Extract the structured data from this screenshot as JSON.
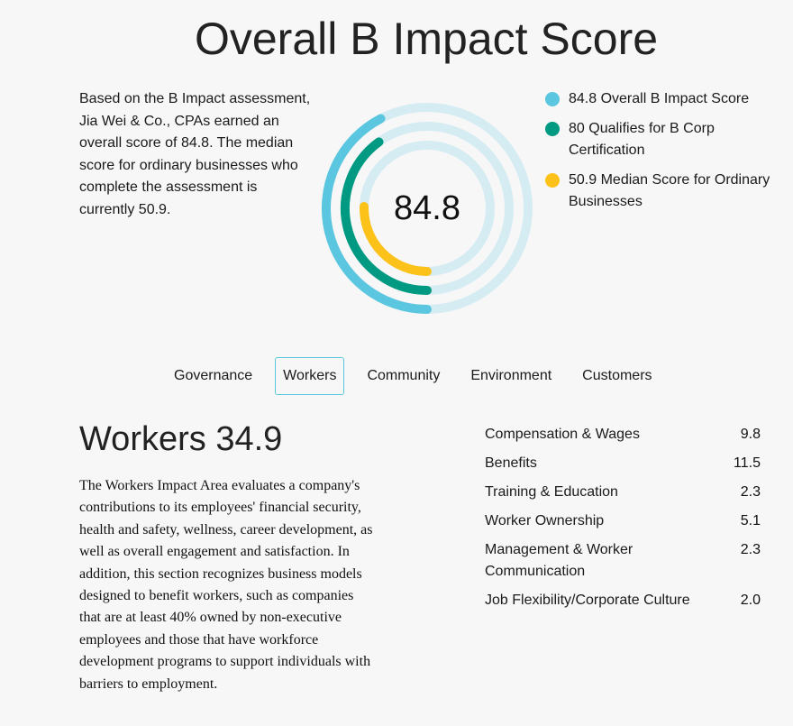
{
  "page": {
    "title": "Overall B Impact Score",
    "intro": "Based on the B Impact assessment, Jia Wei & Co., CPAs earned an overall score of 84.8. The median score for ordinary businesses who complete the assessment is currently 50.9."
  },
  "gauge": {
    "center_value": "84.8",
    "max_score": 200,
    "track_color": "#d6ecf3",
    "rings": [
      {
        "name": "overall",
        "value": 84.8,
        "color": "#5bc6df"
      },
      {
        "name": "qualifies",
        "value": 80,
        "color": "#009a82"
      },
      {
        "name": "median",
        "value": 50.9,
        "color": "#fdc21a"
      }
    ]
  },
  "legend": [
    {
      "label": "84.8 Overall B Impact Score",
      "color": "#5bc6df",
      "icon": "circle-dot-icon"
    },
    {
      "label": "80 Qualifies for B Corp Certification",
      "color": "#009a82",
      "icon": "circle-dot-icon"
    },
    {
      "label": "50.9 Median Score for Ordinary Businesses",
      "color": "#fdc21a",
      "icon": "circle-dot-icon"
    }
  ],
  "tabs": [
    {
      "label": "Governance",
      "active": false
    },
    {
      "label": "Workers",
      "active": true
    },
    {
      "label": "Community",
      "active": false
    },
    {
      "label": "Environment",
      "active": false
    },
    {
      "label": "Customers",
      "active": false
    }
  ],
  "section": {
    "title": "Workers 34.9",
    "description": "The Workers Impact Area evaluates a company's contributions to its employees' financial security, health and safety, wellness, career development, as well as overall engagement and satisfaction. In addition, this section recognizes business models designed to benefit workers, such as companies that are at least 40% owned by non-executive employees and those that have workforce development programs to support individuals with barriers to employment.",
    "scores": [
      {
        "label": "Compensation & Wages",
        "value": "9.8"
      },
      {
        "label": "Benefits",
        "value": "11.5"
      },
      {
        "label": "Training & Education",
        "value": "2.3"
      },
      {
        "label": "Worker Ownership",
        "value": "5.1"
      },
      {
        "label": "Management & Worker Communication",
        "value": "2.3"
      },
      {
        "label": "Job Flexibility/Corporate Culture",
        "value": "2.0"
      }
    ]
  }
}
